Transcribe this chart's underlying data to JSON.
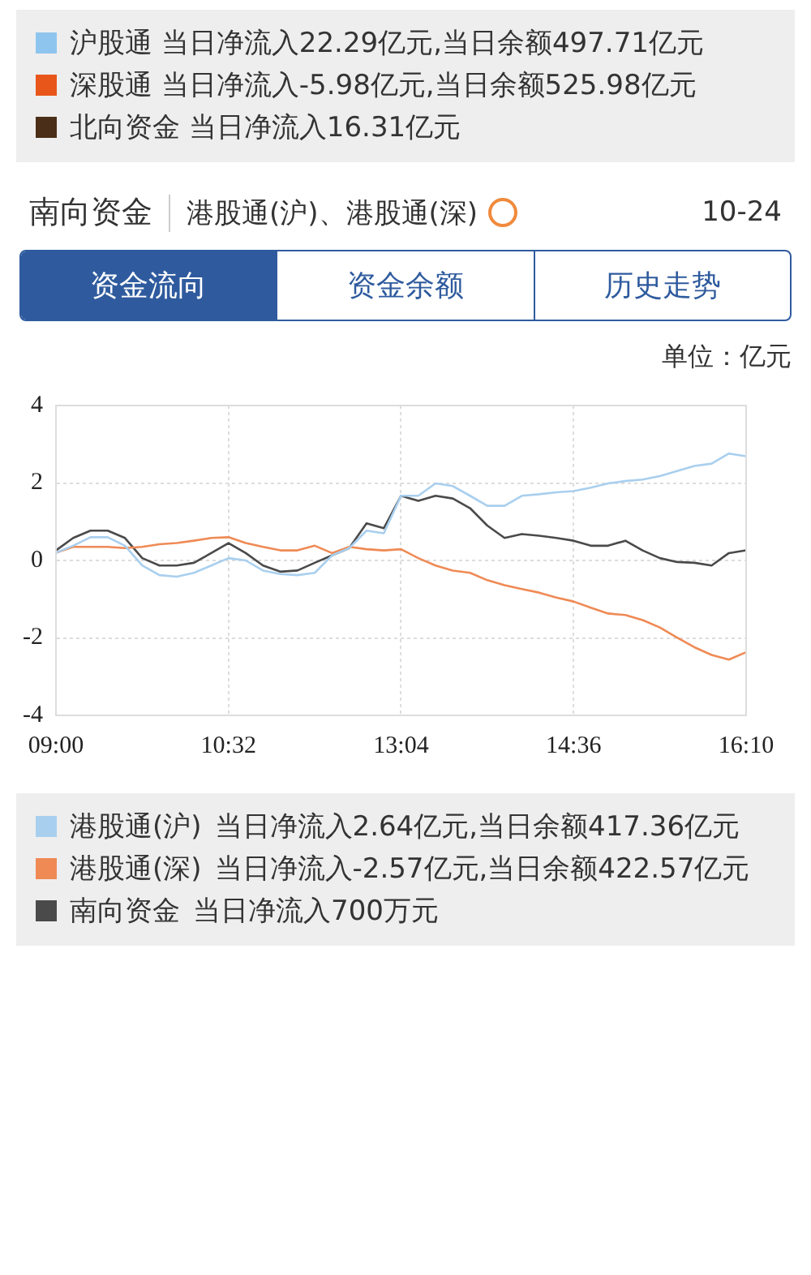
{
  "chart_data": {
    "type": "line",
    "title": "南向资金",
    "subtitle": "港股通(沪)、港股通(深)",
    "ylabel": "单位：亿元",
    "annotations": [
      "沪股通 当日净流入22.29亿元,当日余额497.71亿元",
      "深股通 当日净流入-5.98亿元,当日余额525.98亿元",
      "北向资金 当日净流入16.31亿元",
      "10-24",
      "资金流向",
      "资金余额",
      "历史走势",
      "当日净流入2.64亿元,当日余额417.36亿元",
      "当日净流入-2.57亿元,当日余额422.57亿元",
      "当日净流入700万元"
    ],
    "categories": [
      "09:00",
      null,
      null,
      null,
      null,
      null,
      null,
      null,
      null,
      null,
      "10:32",
      null,
      null,
      null,
      null,
      null,
      null,
      null,
      null,
      null,
      "13:04",
      null,
      null,
      null,
      null,
      null,
      null,
      null,
      null,
      null,
      "14:36",
      null,
      null,
      null,
      null,
      null,
      null,
      null,
      null,
      null,
      "16:10"
    ],
    "series": [
      {
        "name": "港股通(沪)",
        "color": "#a9cfee",
        "values": [
          0.2,
          0.38,
          0.6,
          0.6,
          0.38,
          -0.13,
          -0.38,
          -0.42,
          -0.32,
          -0.13,
          0.06,
          0,
          -0.26,
          -0.35,
          -0.38,
          -0.32,
          0.13,
          0.32,
          0.77,
          0.7,
          1.67,
          1.67,
          1.99,
          1.92,
          1.67,
          1.41,
          1.41,
          1.67,
          1.71,
          1.76,
          1.79,
          1.88,
          1.99,
          2.05,
          2.09,
          2.18,
          2.31,
          2.44,
          2.5,
          2.76,
          2.69
        ]
      },
      {
        "name": "港股通(深)",
        "color": "#ef8a55",
        "values": [
          0.2,
          0.35,
          0.35,
          0.35,
          0.32,
          0.35,
          0.42,
          0.45,
          0.51,
          0.58,
          0.6,
          0.45,
          0.35,
          0.26,
          0.26,
          0.38,
          0.19,
          0.35,
          0.29,
          0.26,
          0.29,
          0.06,
          -0.13,
          -0.26,
          -0.32,
          -0.51,
          -0.64,
          -0.74,
          -0.83,
          -0.96,
          -1.06,
          -1.22,
          -1.37,
          -1.41,
          -1.54,
          -1.73,
          -1.99,
          -2.24,
          -2.44,
          -2.56,
          -2.37
        ]
      },
      {
        "name": "南向资金",
        "color": "#4a4a4a",
        "values": [
          0.26,
          0.58,
          0.77,
          0.77,
          0.58,
          0.06,
          -0.13,
          -0.13,
          -0.06,
          0.19,
          0.45,
          0.19,
          -0.13,
          -0.29,
          -0.26,
          -0.06,
          0.13,
          0.32,
          0.96,
          0.83,
          1.67,
          1.54,
          1.67,
          1.6,
          1.35,
          0.9,
          0.58,
          0.68,
          0.64,
          0.58,
          0.51,
          0.38,
          0.38,
          0.51,
          0.26,
          0.06,
          -0.04,
          -0.06,
          -0.13,
          0.19,
          0.26
        ]
      }
    ],
    "ylim": [
      -4,
      4
    ],
    "yticks": [
      -4,
      -2,
      0,
      2,
      4
    ],
    "grid": true,
    "legend": "bottom",
    "marker": "none",
    "line_style": "solid"
  }
}
